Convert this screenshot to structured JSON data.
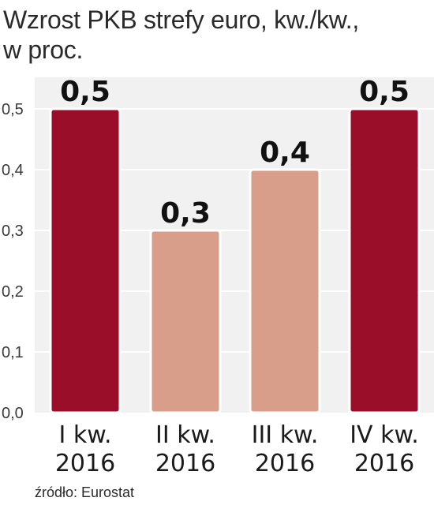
{
  "title_line1": "Wzrost PKB strefy euro, kw./kw.,",
  "title_line2": "w proc.",
  "source": "źródło: Eurostat",
  "chart_data": {
    "type": "bar",
    "title": "Wzrost PKB strefy euro, kw./kw., w proc.",
    "categories": [
      [
        "I kw.",
        "2016"
      ],
      [
        "II kw.",
        "2016"
      ],
      [
        "III kw.",
        "2016"
      ],
      [
        "IV kw.",
        "2016"
      ]
    ],
    "values": [
      0.5,
      0.3,
      0.4,
      0.5
    ],
    "value_labels": [
      "0,5",
      "0,3",
      "0,4",
      "0,5"
    ],
    "ylim": [
      0,
      0.5
    ],
    "yticks": [
      0,
      0.1,
      0.2,
      0.3,
      0.4,
      0.5
    ],
    "ytick_labels": [
      "0,0",
      "0,1",
      "0,2",
      "0,3",
      "0,4",
      "0,5"
    ],
    "grid": true,
    "colors": {
      "highlight": "#9b0e2a",
      "regular": "#d99e89",
      "plot_bg": "#f1f1f1",
      "grid": "#ffffff"
    },
    "highlight": [
      true,
      false,
      false,
      true
    ]
  }
}
